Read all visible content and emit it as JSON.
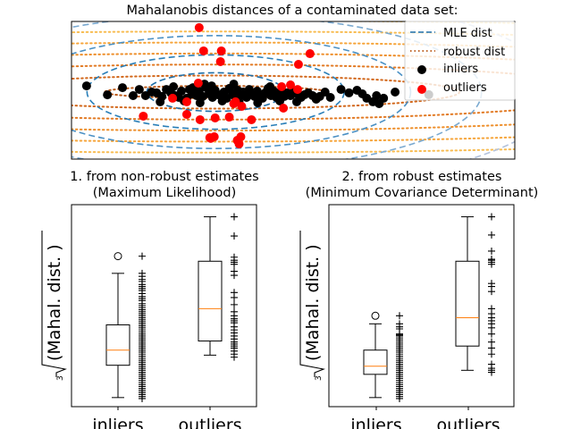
{
  "figure": {
    "suptitle": "Mahalanobis distances of a contaminated data set:"
  },
  "chart_data": [
    {
      "type": "scatter",
      "title": "Mahalanobis distances of a contaminated data set:",
      "xlabel": "",
      "ylabel": "",
      "xlim": [
        0,
        100
      ],
      "ylim": [
        0,
        100
      ],
      "ticks_visible": false,
      "grid": false,
      "legend": {
        "placement": "top-right",
        "entries": [
          {
            "label": "MLE dist",
            "style": "dashed-line",
            "color": "#1f77b4"
          },
          {
            "label": "robust dist",
            "style": "dotted-line",
            "color": "#d95f0e"
          },
          {
            "label": "inliers",
            "style": "marker",
            "color": "#000000"
          },
          {
            "label": "outliers",
            "style": "marker",
            "color": "#ff0000"
          }
        ]
      },
      "contours": {
        "mle": {
          "center": [
            32.5,
            48.7
          ],
          "radii_x": [
            15.5,
            29,
            44,
            60,
            78
          ],
          "radii_y": [
            14,
            27,
            41,
            56,
            72
          ],
          "colors": [
            "#1f6fa8",
            "#2a7fb8",
            "#4a90c4",
            "#7aa9d0",
            "#b3c2dc"
          ]
        },
        "robust": {
          "center": [
            32.5,
            48.7
          ],
          "radii_x": [
            25,
            55,
            90,
            125,
            165,
            205,
            250
          ],
          "radii_y": [
            4.5,
            12,
            20,
            28,
            36,
            44,
            52
          ],
          "colors": [
            "#b8520e",
            "#d06010",
            "#e07318",
            "#ed8a22",
            "#f5a030",
            "#f8b848",
            "#fbd070"
          ]
        }
      },
      "series": [
        {
          "name": "inliers",
          "color": "#000000",
          "points": [
            [
              3.4,
              53.2
            ],
            [
              8.1,
              46.7
            ],
            [
              11.5,
              51.9
            ],
            [
              13.9,
              46.1
            ],
            [
              15.3,
              50.6
            ],
            [
              16.7,
              46.1
            ],
            [
              18.1,
              48.7
            ],
            [
              19.2,
              48.1
            ],
            [
              20.4,
              45.5
            ],
            [
              21.4,
              50.6
            ],
            [
              22.4,
              48.1
            ],
            [
              23.4,
              46.1
            ],
            [
              24.2,
              44.8
            ],
            [
              24.8,
              49.4
            ],
            [
              26.0,
              44.2
            ],
            [
              26.6,
              50.6
            ],
            [
              27.2,
              47.4
            ],
            [
              28.2,
              46.1
            ],
            [
              28.8,
              49.4
            ],
            [
              29.6,
              45.5
            ],
            [
              30.4,
              51.9
            ],
            [
              31.0,
              47.4
            ],
            [
              31.8,
              44.8
            ],
            [
              32.4,
              50.0
            ],
            [
              33.0,
              46.8
            ],
            [
              33.8,
              45.5
            ],
            [
              34.4,
              48.7
            ],
            [
              35.0,
              44.2
            ],
            [
              35.6,
              51.3
            ],
            [
              36.3,
              47.4
            ],
            [
              36.9,
              45.5
            ],
            [
              37.5,
              50.0
            ],
            [
              38.1,
              46.1
            ],
            [
              38.7,
              48.7
            ],
            [
              39.5,
              44.8
            ],
            [
              40.1,
              50.6
            ],
            [
              40.7,
              47.4
            ],
            [
              41.3,
              45.5
            ],
            [
              41.9,
              49.4
            ],
            [
              42.5,
              46.8
            ],
            [
              43.1,
              44.2
            ],
            [
              43.7,
              48.1
            ],
            [
              44.3,
              51.3
            ],
            [
              45.0,
              46.1
            ],
            [
              45.6,
              49.4
            ],
            [
              46.2,
              44.8
            ],
            [
              46.8,
              47.4
            ],
            [
              47.4,
              50.0
            ],
            [
              48.0,
              45.5
            ],
            [
              48.6,
              48.1
            ],
            [
              49.4,
              46.1
            ],
            [
              50.2,
              49.4
            ],
            [
              51.0,
              47.4
            ],
            [
              51.8,
              44.8
            ],
            [
              52.6,
              46.8
            ],
            [
              53.4,
              48.1
            ],
            [
              54.4,
              46.1
            ],
            [
              55.2,
              43.5
            ],
            [
              56.0,
              45.5
            ],
            [
              57.2,
              48.7
            ],
            [
              58.4,
              44.8
            ],
            [
              60.8,
              50.6
            ],
            [
              62.6,
              48.1
            ],
            [
              64.4,
              50.0
            ],
            [
              65.6,
              47.4
            ],
            [
              66.6,
              44.2
            ],
            [
              68.0,
              41.6
            ],
            [
              68.8,
              46.1
            ],
            [
              69.4,
              40.3
            ],
            [
              70.4,
              44.2
            ],
            [
              73.0,
              48.7
            ],
            [
              80.6,
              46.8
            ],
            [
              20.0,
              41.6
            ],
            [
              25.4,
              42.2
            ],
            [
              29.0,
              40.9
            ],
            [
              34.0,
              42.2
            ],
            [
              37.8,
              41.6
            ],
            [
              42.0,
              40.9
            ],
            [
              47.0,
              42.2
            ],
            [
              50.8,
              41.6
            ],
            [
              31.6,
              53.2
            ],
            [
              27.4,
              51.9
            ],
            [
              23.0,
              52.6
            ],
            [
              36.6,
              54.5
            ],
            [
              30.0,
              54.5
            ],
            [
              44.8,
              52.6
            ]
          ]
        },
        {
          "name": "outliers",
          "color": "#ff0000",
          "points": [
            [
              28.8,
              95.5
            ],
            [
              29.8,
              78.6
            ],
            [
              33.8,
              78.6
            ],
            [
              33.6,
              70.8
            ],
            [
              53.8,
              76.6
            ],
            [
              51.2,
              68.8
            ],
            [
              28.6,
              55.2
            ],
            [
              47.4,
              52.6
            ],
            [
              49.4,
              53.9
            ],
            [
              51.0,
              50.6
            ],
            [
              22.8,
              44.2
            ],
            [
              26.0,
              41.6
            ],
            [
              37.0,
              41.6
            ],
            [
              38.4,
              38.3
            ],
            [
              47.8,
              37.0
            ],
            [
              16.2,
              31.2
            ],
            [
              26.0,
              32.5
            ],
            [
              29.0,
              28.6
            ],
            [
              32.4,
              29.9
            ],
            [
              35.6,
              30.5
            ],
            [
              40.6,
              28.6
            ],
            [
              36.6,
              40.3
            ],
            [
              31.2,
              15.6
            ],
            [
              32.2,
              16.2
            ],
            [
              37.4,
              13.6
            ],
            [
              37.8,
              11.0
            ],
            [
              38.2,
              16.2
            ],
            [
              31.4,
              15.0
            ]
          ]
        }
      ]
    },
    {
      "type": "box",
      "title": "1. from non-robust estimates\n(Maximum Likelihood)",
      "title_lines": [
        "1. from non-robust estimates",
        "(Maximum Likelihood)"
      ],
      "ylabel": "∛(Mahal. dist.)",
      "categories": [
        "inliers",
        "outliers"
      ],
      "ylim": [
        0,
        100
      ],
      "boxes": [
        {
          "category": "inliers",
          "whisker_low": 4.5,
          "q1": 20.5,
          "median": 28.0,
          "q3": 40.5,
          "whisker_high": 66.0,
          "fliers": [
            74.5
          ]
        },
        {
          "category": "outliers",
          "whisker_low": 25.5,
          "q1": 32.5,
          "median": 48.5,
          "q3": 72.0,
          "whisker_high": 94.0,
          "fliers": []
        }
      ],
      "raw_points": [
        {
          "category": "inliers",
          "values": [
            74.5,
            66.0,
            64.5,
            63.0,
            62.0,
            60.5,
            59.5,
            58.5,
            57.5,
            56.0,
            54.5,
            53.5,
            52.5,
            51.0,
            50.0,
            49.0,
            48.0,
            47.0,
            46.0,
            45.0,
            44.0,
            43.0,
            42.0,
            41.0,
            40.0,
            39.0,
            38.0,
            37.0,
            36.0,
            35.0,
            34.0,
            33.0,
            32.0,
            31.0,
            30.0,
            29.0,
            28.0,
            27.0,
            26.0,
            25.0,
            24.0,
            23.0,
            22.0,
            21.0,
            20.0,
            19.0,
            18.0,
            17.0,
            16.0,
            15.0,
            14.0,
            13.0,
            12.0,
            11.0,
            10.0,
            9.0,
            8.0,
            7.0,
            6.0,
            5.0,
            4.0
          ]
        },
        {
          "category": "outliers",
          "values": [
            94.0,
            84.5,
            74.0,
            72.5,
            71.5,
            70.5,
            67.0,
            65.0,
            56.5,
            54.0,
            50.5,
            47.0,
            45.0,
            43.5,
            42.5,
            41.5,
            39.5,
            38.0,
            36.5,
            35.0,
            33.5,
            32.0,
            31.0,
            30.0,
            29.0,
            27.5,
            26.0,
            24.5
          ]
        }
      ]
    },
    {
      "type": "box",
      "title": "2. from robust estimates\n(Minimum Covariance Determinant)",
      "title_lines": [
        "2. from robust estimates",
        "(Minimum Covariance Determinant)"
      ],
      "ylabel": "∛(Mahal. dist.)",
      "categories": [
        "inliers",
        "outliers"
      ],
      "ylim": [
        0,
        100
      ],
      "boxes": [
        {
          "category": "inliers",
          "whisker_low": 4.5,
          "q1": 16.0,
          "median": 20.0,
          "q3": 28.0,
          "whisker_high": 41.0,
          "fliers": [
            45.0
          ]
        },
        {
          "category": "outliers",
          "whisker_low": 18.0,
          "q1": 30.0,
          "median": 44.0,
          "q3": 72.0,
          "whisker_high": 94.0,
          "fliers": []
        }
      ],
      "raw_points": [
        {
          "category": "inliers",
          "values": [
            45.0,
            41.0,
            39.5,
            38.5,
            36.0,
            35.5,
            35.0,
            34.0,
            33.0,
            32.0,
            31.0,
            30.0,
            29.0,
            28.0,
            27.0,
            26.0,
            25.0,
            24.0,
            23.0,
            22.0,
            21.0,
            20.0,
            19.0,
            18.0,
            17.0,
            16.0,
            15.0,
            14.0,
            13.0,
            12.0,
            11.0,
            10.0,
            9.0,
            8.0,
            7.0,
            6.0,
            5.0,
            4.0
          ]
        },
        {
          "category": "outliers",
          "values": [
            94.0,
            85.0,
            77.0,
            73.0,
            72.5,
            71.5,
            70.5,
            61.0,
            59.5,
            57.0,
            48.5,
            46.0,
            44.0,
            42.5,
            41.0,
            39.0,
            36.0,
            32.0,
            29.0,
            26.0,
            21.0,
            19.0,
            18.0,
            17.0
          ]
        }
      ]
    }
  ]
}
